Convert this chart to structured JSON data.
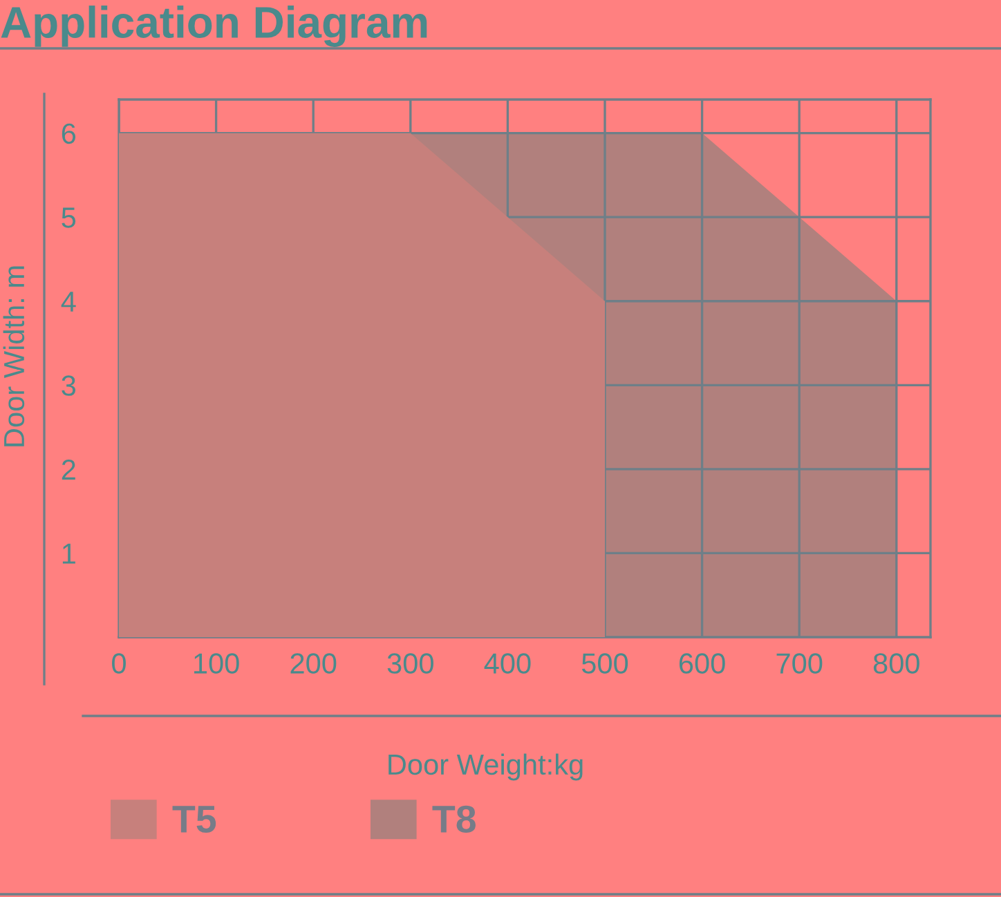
{
  "chart_data": {
    "type": "area",
    "title": "Application Diagram",
    "xlabel": "Door Weight:kg",
    "ylabel": "Door Width: m",
    "series": [
      {
        "name": "T5",
        "color": "#c7807c",
        "x": [
          0,
          300,
          500
        ],
        "values": [
          6,
          6,
          4
        ]
      },
      {
        "name": "T8",
        "color": "#b1807d",
        "x": [
          0,
          600,
          800
        ],
        "values": [
          6,
          6,
          4
        ]
      }
    ],
    "xlim": [
      0,
      835
    ],
    "ylim": [
      0,
      6.4
    ],
    "xticks": [
      0,
      100,
      200,
      300,
      400,
      500,
      600,
      700,
      800
    ],
    "yticks": [
      1,
      2,
      3,
      4,
      5,
      6
    ],
    "grid": true,
    "legend": "bottom left"
  }
}
